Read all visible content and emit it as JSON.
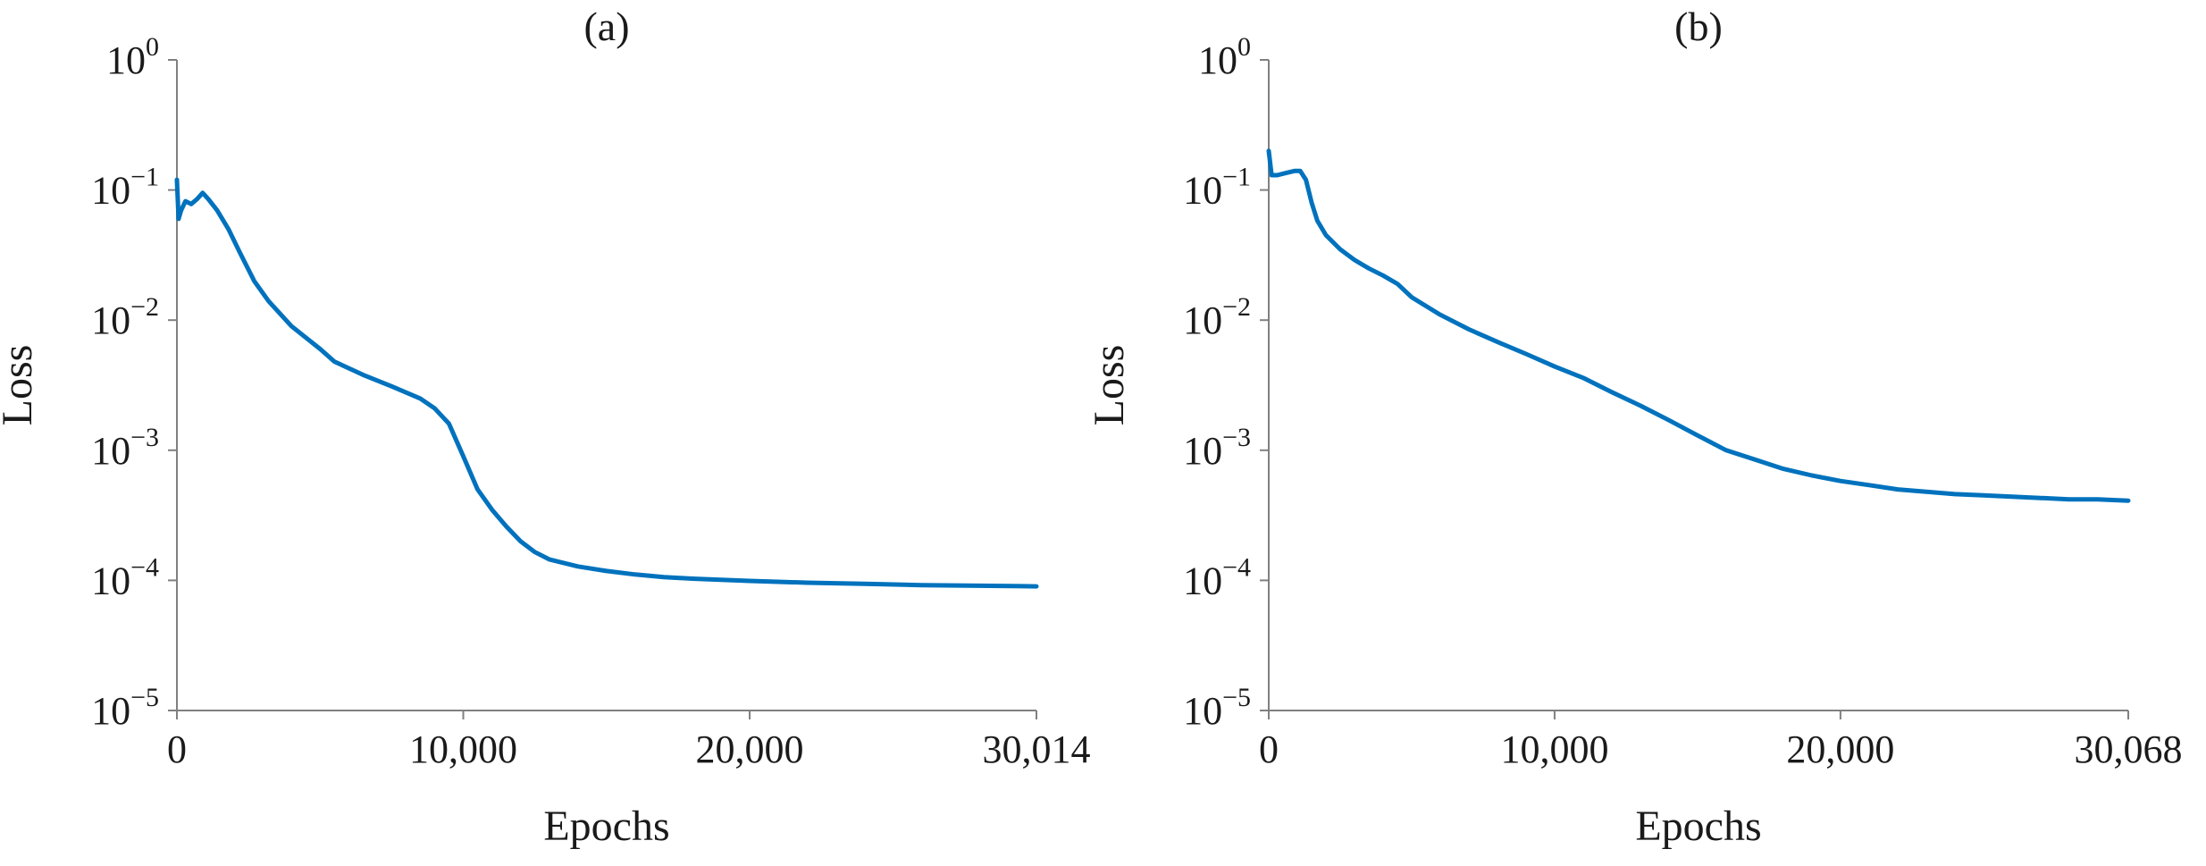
{
  "accent_color": "#0072BD",
  "chart_data": [
    {
      "type": "line",
      "title": "(a)",
      "xlabel": "Epochs",
      "ylabel": "Loss",
      "yscale": "log",
      "xlim": [
        0,
        30014
      ],
      "ylim": [
        1e-05,
        1
      ],
      "xticks": [
        0,
        10000,
        20000,
        30014
      ],
      "xtick_labels": [
        "0",
        "10,000",
        "20,000",
        "30,014"
      ],
      "yticks": [
        {
          "base": "10",
          "exp": "0"
        },
        {
          "base": "10",
          "exp": "−1"
        },
        {
          "base": "10",
          "exp": "−2"
        },
        {
          "base": "10",
          "exp": "−3"
        },
        {
          "base": "10",
          "exp": "−4"
        },
        {
          "base": "10",
          "exp": "−5"
        }
      ],
      "grid": false,
      "color": "#0072BD",
      "series": [
        {
          "x": [
            0,
            60,
            150,
            300,
            500,
            700,
            900,
            1100,
            1400,
            1800,
            2200,
            2700,
            3200,
            4000,
            5000,
            5500,
            6500,
            7500,
            8500,
            9000,
            9500,
            10000,
            10500,
            11000,
            11500,
            12000,
            12500,
            13000,
            14000,
            15000,
            16000,
            17000,
            18000,
            20000,
            22000,
            24000,
            26000,
            28000,
            30014
          ],
          "y": [
            0.12,
            0.06,
            0.07,
            0.082,
            0.078,
            0.085,
            0.095,
            0.085,
            0.07,
            0.05,
            0.033,
            0.02,
            0.014,
            0.009,
            0.006,
            0.0048,
            0.0038,
            0.0031,
            0.0025,
            0.0021,
            0.0016,
            0.0009,
            0.0005,
            0.00035,
            0.00026,
            0.0002,
            0.000165,
            0.000145,
            0.000128,
            0.000118,
            0.000111,
            0.000106,
            0.000103,
            9.9e-05,
            9.6e-05,
            9.4e-05,
            9.2e-05,
            9.1e-05,
            9e-05
          ]
        }
      ]
    },
    {
      "type": "line",
      "title": "(b)",
      "xlabel": "Epochs",
      "ylabel": "Loss",
      "yscale": "log",
      "xlim": [
        0,
        30068
      ],
      "ylim": [
        1e-05,
        1
      ],
      "xticks": [
        0,
        10000,
        20000,
        30068
      ],
      "xtick_labels": [
        "0",
        "10,000",
        "20,000",
        "30,068"
      ],
      "yticks": [
        {
          "base": "10",
          "exp": "0"
        },
        {
          "base": "10",
          "exp": "−1"
        },
        {
          "base": "10",
          "exp": "−2"
        },
        {
          "base": "10",
          "exp": "−3"
        },
        {
          "base": "10",
          "exp": "−4"
        },
        {
          "base": "10",
          "exp": "−5"
        }
      ],
      "grid": false,
      "color": "#0072BD",
      "series": [
        {
          "x": [
            0,
            100,
            300,
            600,
            900,
            1100,
            1300,
            1500,
            1700,
            2000,
            2500,
            3000,
            3500,
            4000,
            4500,
            5000,
            6000,
            7000,
            8000,
            9000,
            10000,
            11000,
            12000,
            13000,
            14000,
            15000,
            16000,
            17000,
            18000,
            19000,
            20000,
            21000,
            22000,
            23000,
            24000,
            25000,
            26000,
            27000,
            28000,
            29000,
            30068
          ],
          "y": [
            0.2,
            0.13,
            0.13,
            0.135,
            0.14,
            0.14,
            0.12,
            0.08,
            0.058,
            0.045,
            0.035,
            0.029,
            0.025,
            0.022,
            0.019,
            0.015,
            0.011,
            0.0085,
            0.0068,
            0.0055,
            0.0044,
            0.0036,
            0.0028,
            0.0022,
            0.0017,
            0.0013,
            0.001,
            0.00085,
            0.00072,
            0.00064,
            0.00058,
            0.00054,
            0.0005,
            0.00048,
            0.00046,
            0.00045,
            0.00044,
            0.00043,
            0.00042,
            0.00042,
            0.00041
          ]
        }
      ]
    }
  ]
}
